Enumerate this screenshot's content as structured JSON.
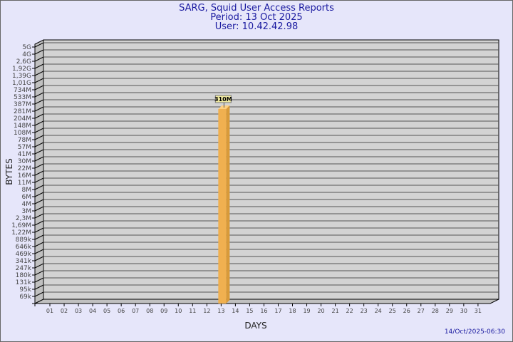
{
  "header": {
    "title": "SARG, Squid User Access Reports",
    "period": "Period: 13 Oct 2025",
    "user": "User: 10.42.42.98"
  },
  "footer": {
    "timestamp": "14/Oct/2025-06:30"
  },
  "colors": {
    "title": "#1a1aa0",
    "bar": "#f0b050",
    "plot": "#d3d3d3",
    "background": "#e6e6fa"
  },
  "chart_data": {
    "type": "bar",
    "xlabel": "DAYS",
    "ylabel": "BYTES",
    "y_scale": "log-like (labelled ticks)",
    "y_ticks": [
      "5G",
      "4G",
      "2,6G",
      "1,92G",
      "1,39G",
      "1,01G",
      "734M",
      "533M",
      "387M",
      "281M",
      "204M",
      "148M",
      "108M",
      "78M",
      "57M",
      "41M",
      "30M",
      "22M",
      "16M",
      "11M",
      "8M",
      "6M",
      "4M",
      "3M",
      "2,3M",
      "1,69M",
      "1,22M",
      "889k",
      "646k",
      "469k",
      "341k",
      "247k",
      "180k",
      "131k",
      "95k",
      "69k"
    ],
    "categories": [
      "01",
      "02",
      "03",
      "04",
      "05",
      "06",
      "07",
      "08",
      "09",
      "10",
      "11",
      "12",
      "13",
      "14",
      "15",
      "16",
      "17",
      "18",
      "19",
      "20",
      "21",
      "22",
      "23",
      "24",
      "25",
      "26",
      "27",
      "28",
      "29",
      "30",
      "31"
    ],
    "bars": [
      {
        "day": "13",
        "value_bytes": 310000000,
        "label": "310M"
      }
    ],
    "grid": true,
    "style": "3d"
  }
}
